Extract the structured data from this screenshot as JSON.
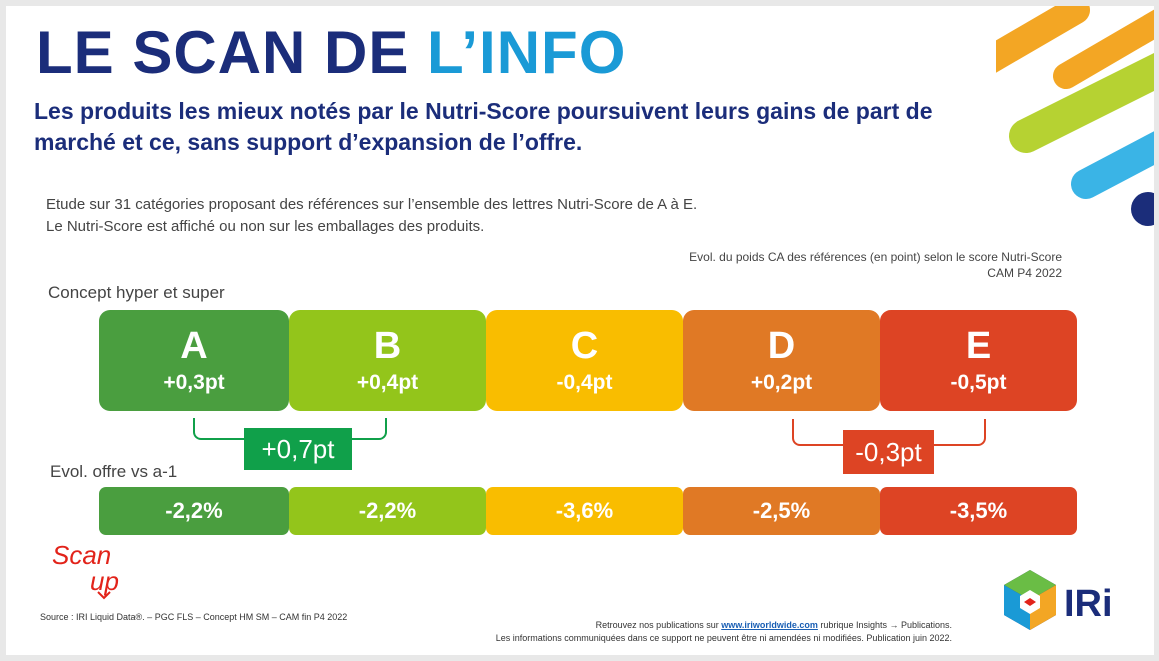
{
  "header": {
    "title_part1": "LE SCAN DE ",
    "title_part2": "L’INFO",
    "subtitle": "Les produits les mieux notés par le Nutri-Score poursuivent leurs gains de part de marché et ce, sans support d’expansion de l’offre."
  },
  "intro": {
    "line1": "Etude sur 31 catégories proposant des références sur l’ensemble des lettres Nutri-Score de A à E.",
    "line2": "Le Nutri-Score est affiché ou non sur les emballages des produits."
  },
  "note": {
    "line1": "Evol. du poids CA des références (en point) selon le score Nutri-Score",
    "line2": "CAM P4 2022"
  },
  "concept_label": "Concept hyper et super",
  "offre_label": "Evol. offre vs a-1",
  "scores": [
    {
      "letter": "A",
      "value": "+0,3pt",
      "color": "#4a9e3f"
    },
    {
      "letter": "B",
      "value": "+0,4pt",
      "color": "#93c51b"
    },
    {
      "letter": "C",
      "value": "-0,4pt",
      "color": "#f9bd00"
    },
    {
      "letter": "D",
      "value": "+0,2pt",
      "color": "#e07925"
    },
    {
      "letter": "E",
      "value": "-0,5pt",
      "color": "#dd4424"
    }
  ],
  "offre": [
    {
      "value": "-2,2%",
      "color": "#4a9e3f"
    },
    {
      "value": "-2,2%",
      "color": "#93c51b"
    },
    {
      "value": "-3,6%",
      "color": "#f9bd00"
    },
    {
      "value": "-2,5%",
      "color": "#e07925"
    },
    {
      "value": "-3,5%",
      "color": "#dd4424"
    }
  ],
  "group_ab": {
    "value": "+0,7pt",
    "color": "#10a04a"
  },
  "group_de": {
    "value": "-0,3pt",
    "color": "#dd4424"
  },
  "scanup_logo": {
    "line1": "Scan",
    "line2": "up"
  },
  "source": "Source : IRI Liquid Data®. – PGC FLS – Concept HM SM – CAM fin P4 2022",
  "footer": {
    "line1_pre": "Retrouvez nos publications sur ",
    "link": "www.iriworldwide.com",
    "line1_post": " rubrique Insights → Publications.",
    "line2": "Les informations communiquées dans ce support ne peuvent être ni amendées ni modifiées. Publication juin 2022."
  },
  "brand": {
    "name": "IRi",
    "color": "#1b2d7a"
  }
}
